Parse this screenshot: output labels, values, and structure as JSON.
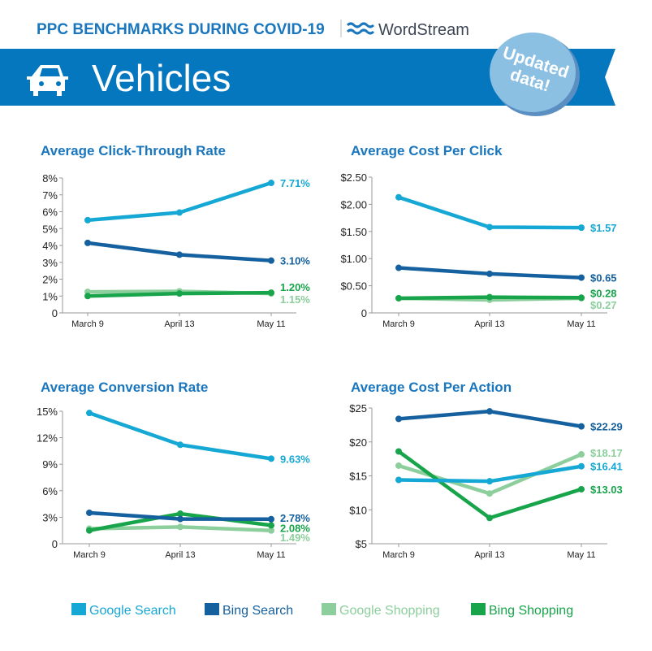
{
  "header": {
    "title": "PPC BENCHMARKS DURING COVID-19",
    "brand": "WordStream",
    "category": "Vehicles",
    "category_icon": "car-icon",
    "badge_line1": "Updated",
    "badge_line2": "data!"
  },
  "colors": {
    "brand_blue": "#1a76bd",
    "banner": "#0477bf",
    "badge": "#8cc0e3",
    "Google Search": "#16a8d4",
    "Bing Search": "#15609e",
    "Google Shopping": "#8ccf9c",
    "Bing Shopping": "#17a44a"
  },
  "legend": [
    "Google Search",
    "Bing Search",
    "Google Shopping",
    "Bing Shopping"
  ],
  "chart_data": [
    {
      "type": "line",
      "title": "Average Click-Through Rate",
      "categories": [
        "March 9",
        "April 13",
        "May 11"
      ],
      "yticks": [
        "0",
        "1%",
        "2%",
        "3%",
        "4%",
        "5%",
        "6%",
        "7%",
        "8%"
      ],
      "ylim": [
        0,
        8
      ],
      "series": [
        {
          "name": "Google Search",
          "values": [
            5.5,
            5.95,
            7.71
          ],
          "end_label": "7.71%"
        },
        {
          "name": "Bing Search",
          "values": [
            4.15,
            3.45,
            3.1
          ],
          "end_label": "3.10%"
        },
        {
          "name": "Google Shopping",
          "values": [
            1.25,
            1.28,
            1.15
          ],
          "end_label": "1.15%"
        },
        {
          "name": "Bing Shopping",
          "values": [
            1.0,
            1.15,
            1.2
          ],
          "end_label": "1.20%"
        }
      ]
    },
    {
      "type": "line",
      "title": "Average Cost Per Click",
      "categories": [
        "March 9",
        "April 13",
        "May 11"
      ],
      "yticks": [
        "0",
        "$0.50",
        "$1.00",
        "$1.50",
        "$2.00",
        "$2.50"
      ],
      "ylim": [
        0,
        2.5
      ],
      "series": [
        {
          "name": "Google Search",
          "values": [
            2.13,
            1.58,
            1.57
          ],
          "end_label": "$1.57"
        },
        {
          "name": "Bing Search",
          "values": [
            0.83,
            0.72,
            0.65
          ],
          "end_label": "$0.65"
        },
        {
          "name": "Google Shopping",
          "values": [
            0.27,
            0.24,
            0.27
          ],
          "end_label": "$0.27"
        },
        {
          "name": "Bing Shopping",
          "values": [
            0.27,
            0.29,
            0.28
          ],
          "end_label": "$0.28"
        }
      ]
    },
    {
      "type": "line",
      "title": "Average Conversion Rate",
      "categories": [
        "March 9",
        "April 13",
        "May 11"
      ],
      "yticks": [
        "0",
        "3%",
        "6%",
        "9%",
        "12%",
        "15%"
      ],
      "ylim": [
        0,
        15
      ],
      "series": [
        {
          "name": "Google Search",
          "values": [
            14.8,
            11.2,
            9.63
          ],
          "end_label": "9.63%"
        },
        {
          "name": "Bing Search",
          "values": [
            3.5,
            2.8,
            2.78
          ],
          "end_label": "2.78%"
        },
        {
          "name": "Google Shopping",
          "values": [
            1.7,
            1.9,
            1.49
          ],
          "end_label": "1.49%"
        },
        {
          "name": "Bing Shopping",
          "values": [
            1.5,
            3.4,
            2.08
          ],
          "end_label": "2.08%"
        }
      ]
    },
    {
      "type": "line",
      "title": "Average Cost Per Action",
      "categories": [
        "March 9",
        "April 13",
        "May 11"
      ],
      "yticks": [
        "$5",
        "$10",
        "$15",
        "$20",
        "$25"
      ],
      "ylim": [
        5,
        25
      ],
      "series": [
        {
          "name": "Google Search",
          "values": [
            14.4,
            14.2,
            16.41
          ],
          "end_label": "$16.41"
        },
        {
          "name": "Bing Search",
          "values": [
            23.4,
            24.5,
            22.29
          ],
          "end_label": "$22.29"
        },
        {
          "name": "Google Shopping",
          "values": [
            16.5,
            12.4,
            18.17
          ],
          "end_label": "$18.17"
        },
        {
          "name": "Bing Shopping",
          "values": [
            18.6,
            8.8,
            13.03
          ],
          "end_label": "$13.03"
        }
      ]
    }
  ]
}
